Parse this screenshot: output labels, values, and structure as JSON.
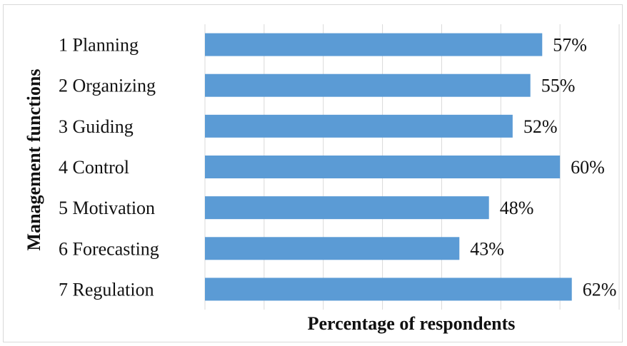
{
  "chart_data": {
    "type": "bar",
    "orientation": "horizontal",
    "title": "",
    "xlabel": "Percentage of respondents",
    "ylabel": "Management functions",
    "categories": [
      "1 Planning",
      "2 Organizing",
      "3 Guiding",
      "4 Control",
      "5 Motivation",
      "6 Forecasting",
      "7 Regulation"
    ],
    "values": [
      57,
      55,
      52,
      60,
      48,
      43,
      62
    ],
    "value_labels": [
      "57%",
      "55%",
      "52%",
      "60%",
      "48%",
      "43%",
      "62%"
    ],
    "xlim": [
      0,
      70
    ],
    "grid": true,
    "legend": "none",
    "bar_color": "#5b9bd5"
  }
}
